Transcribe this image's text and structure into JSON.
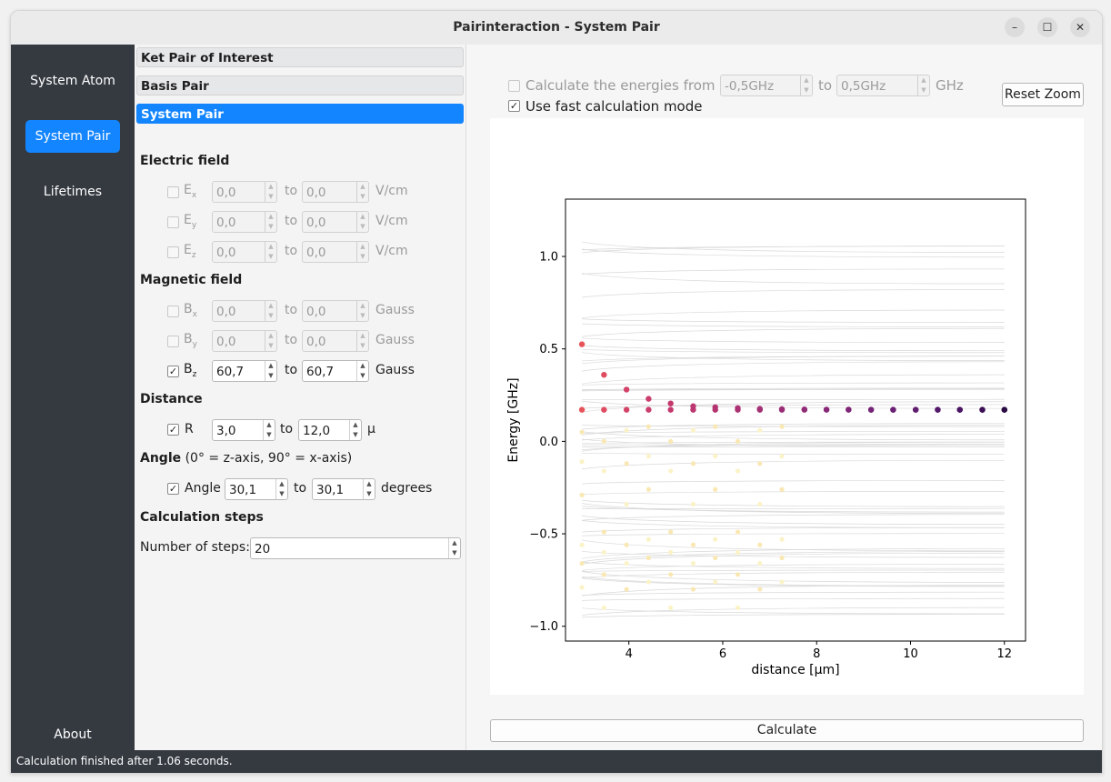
{
  "window": {
    "title": "Pairinteraction - System Pair"
  },
  "sidebar": {
    "items": [
      "System Atom",
      "System Pair",
      "Lifetimes"
    ],
    "about": "About",
    "active": "System Pair"
  },
  "panel": {
    "sections": [
      "Ket Pair of Interest",
      "Basis Pair",
      "System Pair"
    ],
    "to": "to",
    "electric": {
      "title": "Electric field",
      "unit": "V/cm",
      "rows": [
        {
          "label": "E",
          "sub": "x",
          "from": "0,0",
          "to": "0,0",
          "checked": false
        },
        {
          "label": "E",
          "sub": "y",
          "from": "0,0",
          "to": "0,0",
          "checked": false
        },
        {
          "label": "E",
          "sub": "z",
          "from": "0,0",
          "to": "0,0",
          "checked": false
        }
      ]
    },
    "magnetic": {
      "title": "Magnetic field",
      "unit": "Gauss",
      "rows": [
        {
          "label": "B",
          "sub": "x",
          "from": "0,0",
          "to": "0,0",
          "checked": false
        },
        {
          "label": "B",
          "sub": "y",
          "from": "0,0",
          "to": "0,0",
          "checked": false
        },
        {
          "label": "B",
          "sub": "z",
          "from": "60,7",
          "to": "60,7",
          "checked": true
        }
      ]
    },
    "distance": {
      "title": "Distance",
      "label": "R",
      "from": "3,0",
      "to": "12,0",
      "unit": "μ",
      "checked": true
    },
    "angle": {
      "title": "Angle",
      "note": "(0° = z-axis, 90° = x-axis)",
      "label": "Angle",
      "from": "30,1",
      "to": "30,1",
      "unit": "degrees",
      "checked": true
    },
    "steps": {
      "title": "Calculation steps",
      "label": "Number of steps:",
      "value": "20"
    }
  },
  "controls": {
    "energies_label": "Calculate the energies from",
    "energies_from": "-0,5GHz",
    "energies_to": "0,5GHz",
    "energies_unit": "GHz",
    "energies_checked": false,
    "fast_label": "Use fast calculation mode",
    "fast_checked": true,
    "reset_zoom": "Reset Zoom",
    "calculate": "Calculate"
  },
  "status": "Calculation finished after 1.06 seconds.",
  "chart_data": {
    "type": "scatter",
    "xlabel": "distance [μm]",
    "ylabel": "Energy [GHz]",
    "xlim": [
      2.65,
      12.45
    ],
    "ylim": [
      -1.08,
      1.31
    ],
    "xticks": [
      4,
      6,
      8,
      10,
      12
    ],
    "ytick_labels": [
      "−1.0",
      "−0.5",
      "0.0",
      "0.5",
      "1.0"
    ],
    "ytick_values": [
      -1.0,
      -0.5,
      0.0,
      0.5,
      1.0
    ],
    "grid": false,
    "background_lines_color": "#d9d9d9",
    "highlight_series": {
      "x": [
        3.0,
        3.47,
        3.95,
        4.42,
        4.89,
        5.37,
        5.84,
        6.32,
        6.79,
        7.26,
        7.74,
        8.21,
        8.68,
        9.16,
        9.63,
        10.11,
        10.58,
        11.05,
        11.53,
        12.0
      ],
      "y": [
        0.525,
        0.36,
        0.28,
        0.23,
        0.205,
        0.19,
        0.185,
        0.18,
        0.176,
        0.174,
        0.173,
        0.172,
        0.172,
        0.171,
        0.171,
        0.171,
        0.171,
        0.171,
        0.171,
        0.171
      ],
      "colors": [
        "#e6545a",
        "#df4b60",
        "#d44468",
        "#cc3f6c",
        "#c43a6e",
        "#bd3770",
        "#b43471",
        "#ac3273",
        "#a32f74",
        "#9a2d76",
        "#912b77",
        "#882977",
        "#7f2677",
        "#752476",
        "#6b2174",
        "#601d70",
        "#55196a",
        "#4a1462",
        "#3d1055",
        "#2a0b43"
      ]
    },
    "flat_series": {
      "y": 0.171,
      "color": "#8c2a78"
    }
  }
}
